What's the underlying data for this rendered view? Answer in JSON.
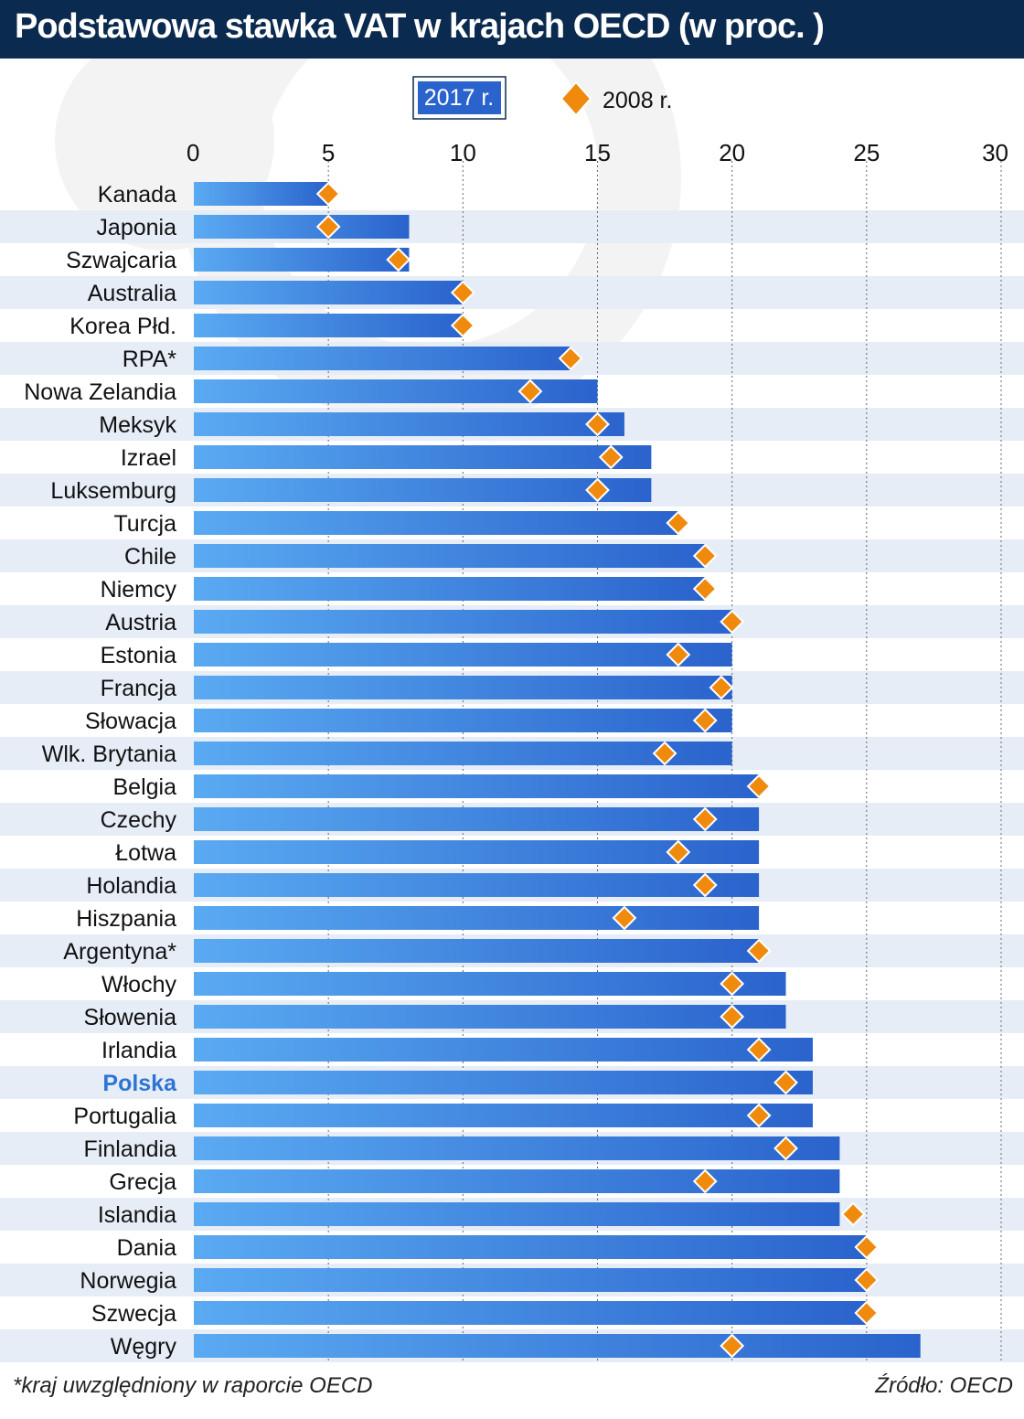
{
  "title": "Podstawowa stawka VAT w krajach OECD (w proc. )",
  "footnote": "*kraj uwzględniony w raporcie OECD",
  "source": "Źródło: OECD",
  "colors": {
    "bar_light": "#5aaaf2",
    "bar_dark": "#2a63cc",
    "marker": "#f08a0c",
    "highlight_label": "#2e74d4",
    "band": "#e6edf7",
    "header": "#0b2a4f"
  },
  "chart_data": {
    "type": "bar",
    "orientation": "horizontal",
    "xlim": [
      0,
      30
    ],
    "xticks": [
      "0",
      "5",
      "10",
      "15",
      "20",
      "25",
      "30"
    ],
    "grid": "vertical dotted",
    "legend_position": "top",
    "highlight": "Polska",
    "categories": [
      "Kanada",
      "Japonia",
      "Szwajcaria",
      "Australia",
      "Korea Płd.",
      "RPA*",
      "Nowa Zelandia",
      "Meksyk",
      "Izrael",
      "Luksemburg",
      "Turcja",
      "Chile",
      "Niemcy",
      "Austria",
      "Estonia",
      "Francja",
      "Słowacja",
      "Wlk. Brytania",
      "Belgia",
      "Czechy",
      "Łotwa",
      "Holandia",
      "Hiszpania",
      "Argentyna*",
      "Włochy",
      "Słowenia",
      "Irlandia",
      "Polska",
      "Portugalia",
      "Finlandia",
      "Grecja",
      "Islandia",
      "Dania",
      "Norwegia",
      "Szwecja",
      "Węgry"
    ],
    "series": [
      {
        "name": "2017 r.",
        "values": [
          5,
          8,
          8,
          10,
          10,
          14,
          15,
          16,
          17,
          17,
          18,
          19,
          19,
          20,
          20,
          20,
          20,
          20,
          21,
          21,
          21,
          21,
          21,
          21,
          22,
          22,
          23,
          23,
          23,
          24,
          24,
          24,
          25,
          25,
          25,
          27
        ]
      },
      {
        "name": "2008 r.",
        "values": [
          5,
          5,
          7.6,
          10,
          10,
          14,
          12.5,
          15,
          15.5,
          15,
          18,
          19,
          19,
          20,
          18,
          19.6,
          19,
          17.5,
          21,
          19,
          18,
          19,
          16,
          21,
          20,
          20,
          21,
          22,
          21,
          22,
          19,
          24.5,
          25,
          25,
          25,
          20
        ]
      }
    ]
  }
}
